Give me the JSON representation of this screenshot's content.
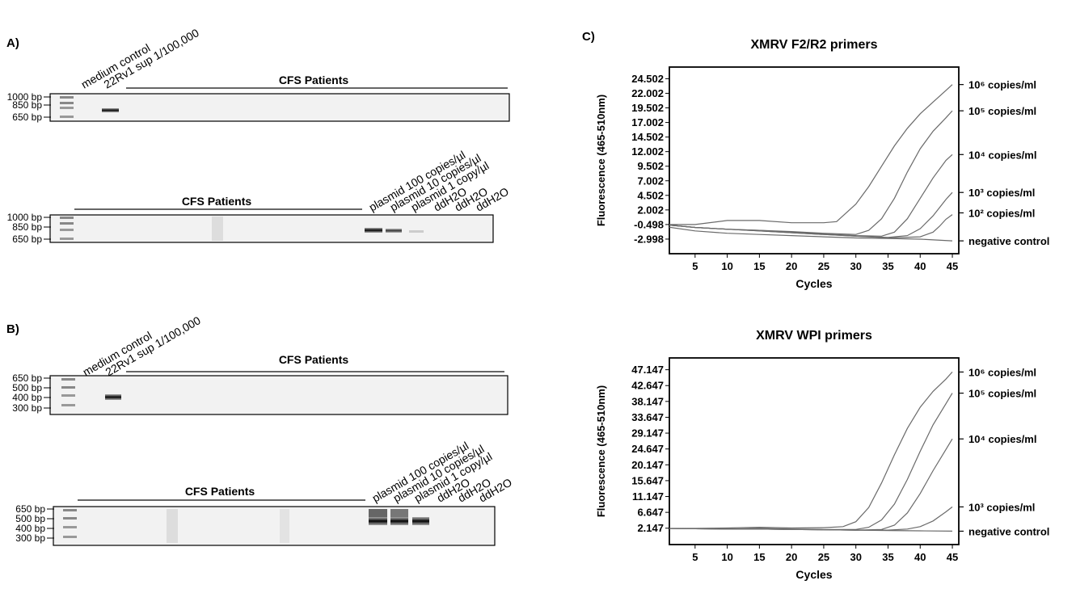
{
  "panel_a": {
    "label": "A)",
    "gel1": {
      "markers": [
        "1000 bp",
        "850 bp",
        "650 bp"
      ],
      "lanes": [
        "medium control",
        "22Rv1 sup 1/100,000"
      ],
      "group": "CFS Patients"
    },
    "gel2": {
      "markers": [
        "1000 bp",
        "850 bp",
        "650 bp"
      ],
      "group": "CFS Patients",
      "lanes": [
        "plasmid 100 copies/µl",
        "plasmid 10 copies/µl",
        "plasmid 1 copy/µl",
        "ddH2O",
        "ddH2O",
        "ddH2O"
      ]
    }
  },
  "panel_b": {
    "label": "B)",
    "gel1": {
      "markers": [
        "650 bp",
        "500 bp",
        "400 bp",
        "300 bp"
      ],
      "lanes": [
        "medium control",
        "22Rv1 sup 1/100,000"
      ],
      "group": "CFS Patients"
    },
    "gel2": {
      "markers": [
        "650 bp",
        "500 bp",
        "400 bp",
        "300 bp"
      ],
      "group": "CFS Patients",
      "lanes": [
        "plasmid 100 copies/µl",
        "plasmid 10 copies/µl",
        "plasmid 1 copy/µl",
        "ddH2O",
        "ddH2O",
        "ddH2O"
      ]
    }
  },
  "panel_c": {
    "label": "C)"
  },
  "chart_data": [
    {
      "type": "line",
      "title": "XMRV F2/R2 primers",
      "xlabel": "Cycles",
      "ylabel": "Fluorescence (465-510nm)",
      "xlim": [
        1,
        46
      ],
      "ylim": [
        -5.5,
        26.5
      ],
      "x_ticks": [
        5,
        10,
        15,
        20,
        25,
        30,
        35,
        40,
        45
      ],
      "y_ticks": [
        "-2.998",
        "-0.498",
        "2.002",
        "4.502",
        "7.002",
        "9.502",
        "12.002",
        "14.502",
        "17.002",
        "19.502",
        "22.002",
        "24.502"
      ],
      "y_tick_values": [
        -2.998,
        -0.498,
        2.002,
        4.502,
        7.002,
        9.502,
        12.002,
        14.502,
        17.002,
        19.502,
        22.002,
        24.502
      ],
      "series": [
        {
          "name": "10⁶ copies/ml",
          "label_value": 23.5,
          "x": [
            0,
            5,
            10,
            15,
            20,
            25,
            27,
            28,
            30,
            32,
            34,
            36,
            38,
            40,
            42,
            44,
            45
          ],
          "y": [
            -0.5,
            -0.5,
            0.2,
            0.2,
            -0.2,
            -0.2,
            0.0,
            1.0,
            3.0,
            6.0,
            9.5,
            13.0,
            16.0,
            18.5,
            20.5,
            22.5,
            23.5
          ]
        },
        {
          "name": "10⁵ copies/ml",
          "label_value": 19.0,
          "x": [
            0,
            5,
            10,
            15,
            20,
            25,
            30,
            32,
            34,
            36,
            38,
            40,
            42,
            44,
            45
          ],
          "y": [
            -0.5,
            -1.0,
            -1.3,
            -1.5,
            -1.7,
            -2.0,
            -2.2,
            -1.5,
            0.5,
            4.0,
            8.5,
            12.5,
            15.5,
            17.8,
            19.0
          ]
        },
        {
          "name": "10⁴ copies/ml",
          "label_value": 11.5,
          "x": [
            0,
            5,
            10,
            15,
            20,
            25,
            30,
            34,
            36,
            38,
            40,
            42,
            44,
            45
          ],
          "y": [
            -0.5,
            -1.0,
            -1.3,
            -1.5,
            -1.8,
            -2.1,
            -2.4,
            -2.5,
            -1.8,
            0.5,
            4.0,
            7.5,
            10.5,
            11.5
          ]
        },
        {
          "name": "10³ copies/ml",
          "label_value": 5.0,
          "x": [
            0,
            5,
            10,
            15,
            20,
            25,
            30,
            35,
            38,
            40,
            42,
            44,
            45
          ],
          "y": [
            -0.5,
            -1.0,
            -1.3,
            -1.6,
            -1.9,
            -2.2,
            -2.5,
            -2.7,
            -2.4,
            -1.2,
            1.0,
            3.8,
            5.0
          ]
        },
        {
          "name": "10² copies/ml",
          "label_value": 1.5,
          "x": [
            0,
            5,
            10,
            15,
            20,
            25,
            30,
            35,
            40,
            42,
            43,
            44,
            45
          ],
          "y": [
            -0.5,
            -1.0,
            -1.3,
            -1.6,
            -1.9,
            -2.2,
            -2.5,
            -2.8,
            -2.6,
            -1.8,
            -0.8,
            0.4,
            1.2
          ]
        },
        {
          "name": "negative control",
          "label_value": -3.3,
          "x": [
            0,
            5,
            10,
            15,
            20,
            25,
            30,
            35,
            40,
            45
          ],
          "y": [
            -0.8,
            -1.6,
            -2.0,
            -2.2,
            -2.4,
            -2.6,
            -2.8,
            -2.9,
            -3.0,
            -3.3
          ]
        }
      ]
    },
    {
      "type": "line",
      "title": "XMRV WPI primers",
      "xlabel": "Cycles",
      "ylabel": "Fluorescence (465-510nm)",
      "xlim": [
        1,
        46
      ],
      "ylim": [
        -2.5,
        50.5
      ],
      "x_ticks": [
        5,
        10,
        15,
        20,
        25,
        30,
        35,
        40,
        45
      ],
      "y_ticks": [
        "2.147",
        "6.647",
        "11.147",
        "15.647",
        "20.147",
        "24.647",
        "29.147",
        "33.647",
        "38.147",
        "42.647",
        "47.147"
      ],
      "y_tick_values": [
        2.147,
        6.647,
        11.147,
        15.647,
        20.147,
        24.647,
        29.147,
        33.647,
        38.147,
        42.647,
        47.147
      ],
      "series": [
        {
          "name": "10⁶ copies/ml",
          "label_value": 46.5,
          "x": [
            0,
            5,
            10,
            15,
            20,
            25,
            28,
            30,
            32,
            34,
            36,
            38,
            40,
            42,
            44,
            45
          ],
          "y": [
            2.1,
            2.1,
            2.2,
            2.4,
            2.2,
            2.3,
            2.6,
            4.0,
            8.0,
            15.0,
            23.0,
            30.5,
            36.5,
            41.0,
            44.5,
            46.5
          ]
        },
        {
          "name": "10⁵ copies/ml",
          "label_value": 40.5,
          "x": [
            0,
            5,
            10,
            15,
            20,
            25,
            30,
            32,
            34,
            36,
            38,
            40,
            42,
            44,
            45
          ],
          "y": [
            2.1,
            2.0,
            1.9,
            2.1,
            1.9,
            1.8,
            1.8,
            2.4,
            4.5,
            9.0,
            16.0,
            24.0,
            31.5,
            37.5,
            40.5
          ]
        },
        {
          "name": "10⁴ copies/ml",
          "label_value": 27.5,
          "x": [
            0,
            5,
            10,
            15,
            20,
            25,
            30,
            34,
            36,
            38,
            40,
            42,
            44,
            45
          ],
          "y": [
            2.1,
            2.0,
            1.9,
            1.9,
            1.8,
            1.7,
            1.6,
            1.8,
            3.0,
            6.5,
            12.0,
            18.5,
            24.5,
            27.5
          ]
        },
        {
          "name": "10³ copies/ml",
          "label_value": 8.2,
          "x": [
            0,
            5,
            10,
            15,
            20,
            25,
            30,
            35,
            38,
            40,
            42,
            44,
            45
          ],
          "y": [
            2.1,
            2.0,
            1.9,
            1.9,
            1.8,
            1.7,
            1.6,
            1.6,
            1.9,
            2.6,
            4.2,
            6.8,
            8.2
          ]
        },
        {
          "name": "negative control",
          "label_value": 1.3,
          "x": [
            0,
            5,
            10,
            15,
            20,
            25,
            30,
            35,
            40,
            45
          ],
          "y": [
            2.1,
            2.0,
            1.9,
            1.9,
            1.8,
            1.7,
            1.6,
            1.5,
            1.4,
            1.3
          ]
        }
      ]
    }
  ]
}
